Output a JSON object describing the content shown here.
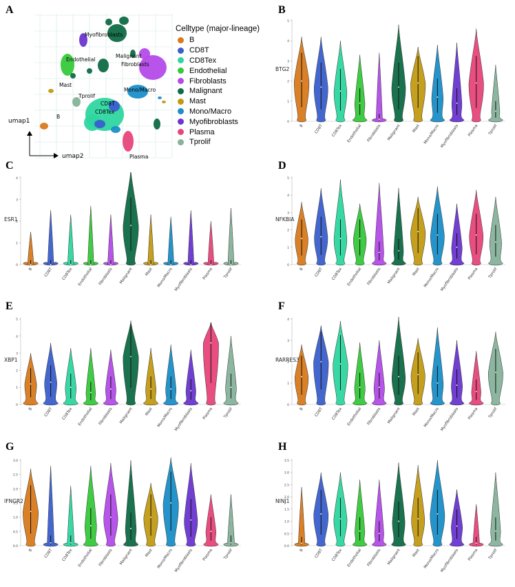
{
  "panels": {
    "A": "A",
    "B": "B",
    "C": "C",
    "D": "D",
    "E": "E",
    "F": "F",
    "G": "G",
    "H": "H"
  },
  "categories": [
    "B",
    "CD8T",
    "CD8Tex",
    "Endothelial",
    "Fibroblasts",
    "Malignant",
    "Mast",
    "Mono/Macro",
    "Myofibroblasts",
    "Plasma",
    "Tprolif"
  ],
  "colors": {
    "B": "#d97a1c",
    "CD8T": "#3a5fcd",
    "CD8Tex": "#2ed6a0",
    "Endothelial": "#36c93a",
    "Fibroblasts": "#b44be8",
    "Malignant": "#0e6b45",
    "Mast": "#c29a12",
    "Mono/Macro": "#1a8fc8",
    "Myofibroblasts": "#6a35d0",
    "Plasma": "#e8457a",
    "Tprolif": "#86b39a"
  },
  "umap": {
    "legend_title": "Celltype (major-lineage)",
    "x_axis_label": "umap2",
    "y_axis_label": "umap1",
    "cluster_labels": [
      "Myofibroblasts",
      "Malignant",
      "Fibroblasts",
      "Endothelial",
      "Mast",
      "Tprolif",
      "CD8T",
      "CD8Tex",
      "Mono/Macro",
      "B",
      "Plasma"
    ]
  },
  "chart_data": [
    {
      "panel": "B",
      "type": "violin",
      "ylabel": "BTG2",
      "ylim": [
        0,
        5
      ],
      "yticks": [
        0,
        1,
        2,
        3,
        4,
        5
      ],
      "categories": [
        "B",
        "CD8T",
        "CD8Tex",
        "Endothelial",
        "Fibroblasts",
        "Malignant",
        "Mast",
        "Mono/Macro",
        "Myofibroblasts",
        "Plasma",
        "Tprolif"
      ],
      "max": [
        4.2,
        4.2,
        4.0,
        3.3,
        3.4,
        4.8,
        3.7,
        3.8,
        3.9,
        4.6,
        2.8
      ],
      "median": [
        2.0,
        1.7,
        1.5,
        0.9,
        0.1,
        1.7,
        1.9,
        1.2,
        0.9,
        1.9,
        0.5
      ]
    },
    {
      "panel": "C",
      "type": "violin",
      "ylabel": "ESR1",
      "ylim": [
        0,
        4
      ],
      "yticks": [
        0,
        1,
        2,
        3,
        4
      ],
      "categories": [
        "B",
        "CD8T",
        "CD8Tex",
        "Endothelial",
        "Fibroblasts",
        "Malignant",
        "Mast",
        "Mono/Macro",
        "Myofibroblasts",
        "Plasma",
        "Tprolif"
      ],
      "max": [
        1.5,
        2.5,
        2.3,
        2.7,
        2.3,
        4.4,
        2.3,
        2.2,
        2.5,
        2.0,
        2.6
      ],
      "median": [
        0,
        0,
        0,
        0,
        0,
        1.8,
        0,
        0,
        0,
        0,
        0
      ]
    },
    {
      "panel": "D",
      "type": "violin",
      "ylabel": "NFKBIA",
      "ylim": [
        0,
        5
      ],
      "yticks": [
        0,
        1,
        2,
        3,
        4,
        5
      ],
      "categories": [
        "B",
        "CD8T",
        "CD8Tex",
        "Endothelial",
        "Fibroblasts",
        "Malignant",
        "Mast",
        "Mono/Macro",
        "Myofibroblasts",
        "Plasma",
        "Tprolif"
      ],
      "max": [
        3.6,
        4.4,
        4.9,
        3.5,
        4.7,
        4.4,
        3.9,
        4.5,
        3.5,
        4.3,
        3.9
      ],
      "median": [
        1.5,
        1.6,
        1.5,
        1.5,
        0.7,
        0.8,
        1.9,
        1.7,
        1.0,
        1.7,
        1.3
      ]
    },
    {
      "panel": "E",
      "type": "violin",
      "ylabel": "XBP1",
      "ylim": [
        0,
        5
      ],
      "yticks": [
        0,
        1,
        2,
        3,
        4,
        5
      ],
      "categories": [
        "B",
        "CD8T",
        "CD8Tex",
        "Endothelial",
        "Fibroblasts",
        "Malignant",
        "Mast",
        "Mono/Macro",
        "Myofibroblasts",
        "Plasma",
        "Tprolif"
      ],
      "max": [
        3.0,
        3.6,
        3.3,
        3.3,
        3.2,
        4.9,
        3.3,
        3.5,
        3.2,
        4.8,
        4.0
      ],
      "median": [
        1.2,
        1.3,
        1.0,
        0.7,
        0.9,
        2.8,
        0.9,
        0.9,
        0.8,
        3.6,
        1.0
      ]
    },
    {
      "panel": "F",
      "type": "violin",
      "ylabel": "RARRES3",
      "ylim": [
        0,
        4
      ],
      "yticks": [
        0,
        1,
        2,
        3,
        4
      ],
      "categories": [
        "B",
        "CD8T",
        "CD8Tex",
        "Endothelial",
        "Fibroblasts",
        "Malignant",
        "Mast",
        "Mono/Macro",
        "Myofibroblasts",
        "Plasma",
        "Tprolif"
      ],
      "max": [
        2.8,
        3.7,
        3.9,
        2.9,
        3.0,
        4.1,
        3.1,
        3.6,
        3.0,
        2.5,
        3.4
      ],
      "median": [
        1.3,
        2.0,
        1.9,
        0.8,
        0.8,
        1.3,
        1.4,
        1.0,
        0.9,
        0.6,
        1.5
      ]
    },
    {
      "panel": "G",
      "type": "violin",
      "ylabel": "IFNGR2",
      "ylim": [
        0,
        3
      ],
      "yticks": [
        0,
        0.5,
        1.0,
        1.5,
        2.0,
        2.5,
        3.0
      ],
      "categories": [
        "B",
        "CD8T",
        "CD8Tex",
        "Endothelial",
        "Fibroblasts",
        "Malignant",
        "Mast",
        "Mono/Macro",
        "Myofibroblasts",
        "Plasma",
        "Tprolif"
      ],
      "max": [
        2.7,
        2.8,
        2.1,
        2.8,
        2.9,
        3.0,
        2.2,
        3.1,
        2.9,
        1.8,
        1.8
      ],
      "median": [
        1.2,
        0.1,
        0.1,
        0.7,
        1.0,
        0.6,
        1.0,
        1.5,
        0.9,
        0.5,
        0.1
      ]
    },
    {
      "panel": "H",
      "type": "violin",
      "ylabel": "NINJ1",
      "ylim": [
        0,
        3.5
      ],
      "yticks": [
        0,
        0.5,
        1.0,
        1.5,
        2.0,
        2.5,
        3.0,
        3.5
      ],
      "categories": [
        "B",
        "CD8T",
        "CD8Tex",
        "Endothelial",
        "Fibroblasts",
        "Malignant",
        "Mast",
        "Mono/Macro",
        "Myofibroblasts",
        "Plasma",
        "Tprolif"
      ],
      "max": [
        2.4,
        3.0,
        3.0,
        2.7,
        2.7,
        3.4,
        3.3,
        3.5,
        2.3,
        1.7,
        3.0
      ],
      "median": [
        0.1,
        1.3,
        1.1,
        0.6,
        0.5,
        1.0,
        1.1,
        1.3,
        0.8,
        0.1,
        0.6
      ]
    }
  ]
}
